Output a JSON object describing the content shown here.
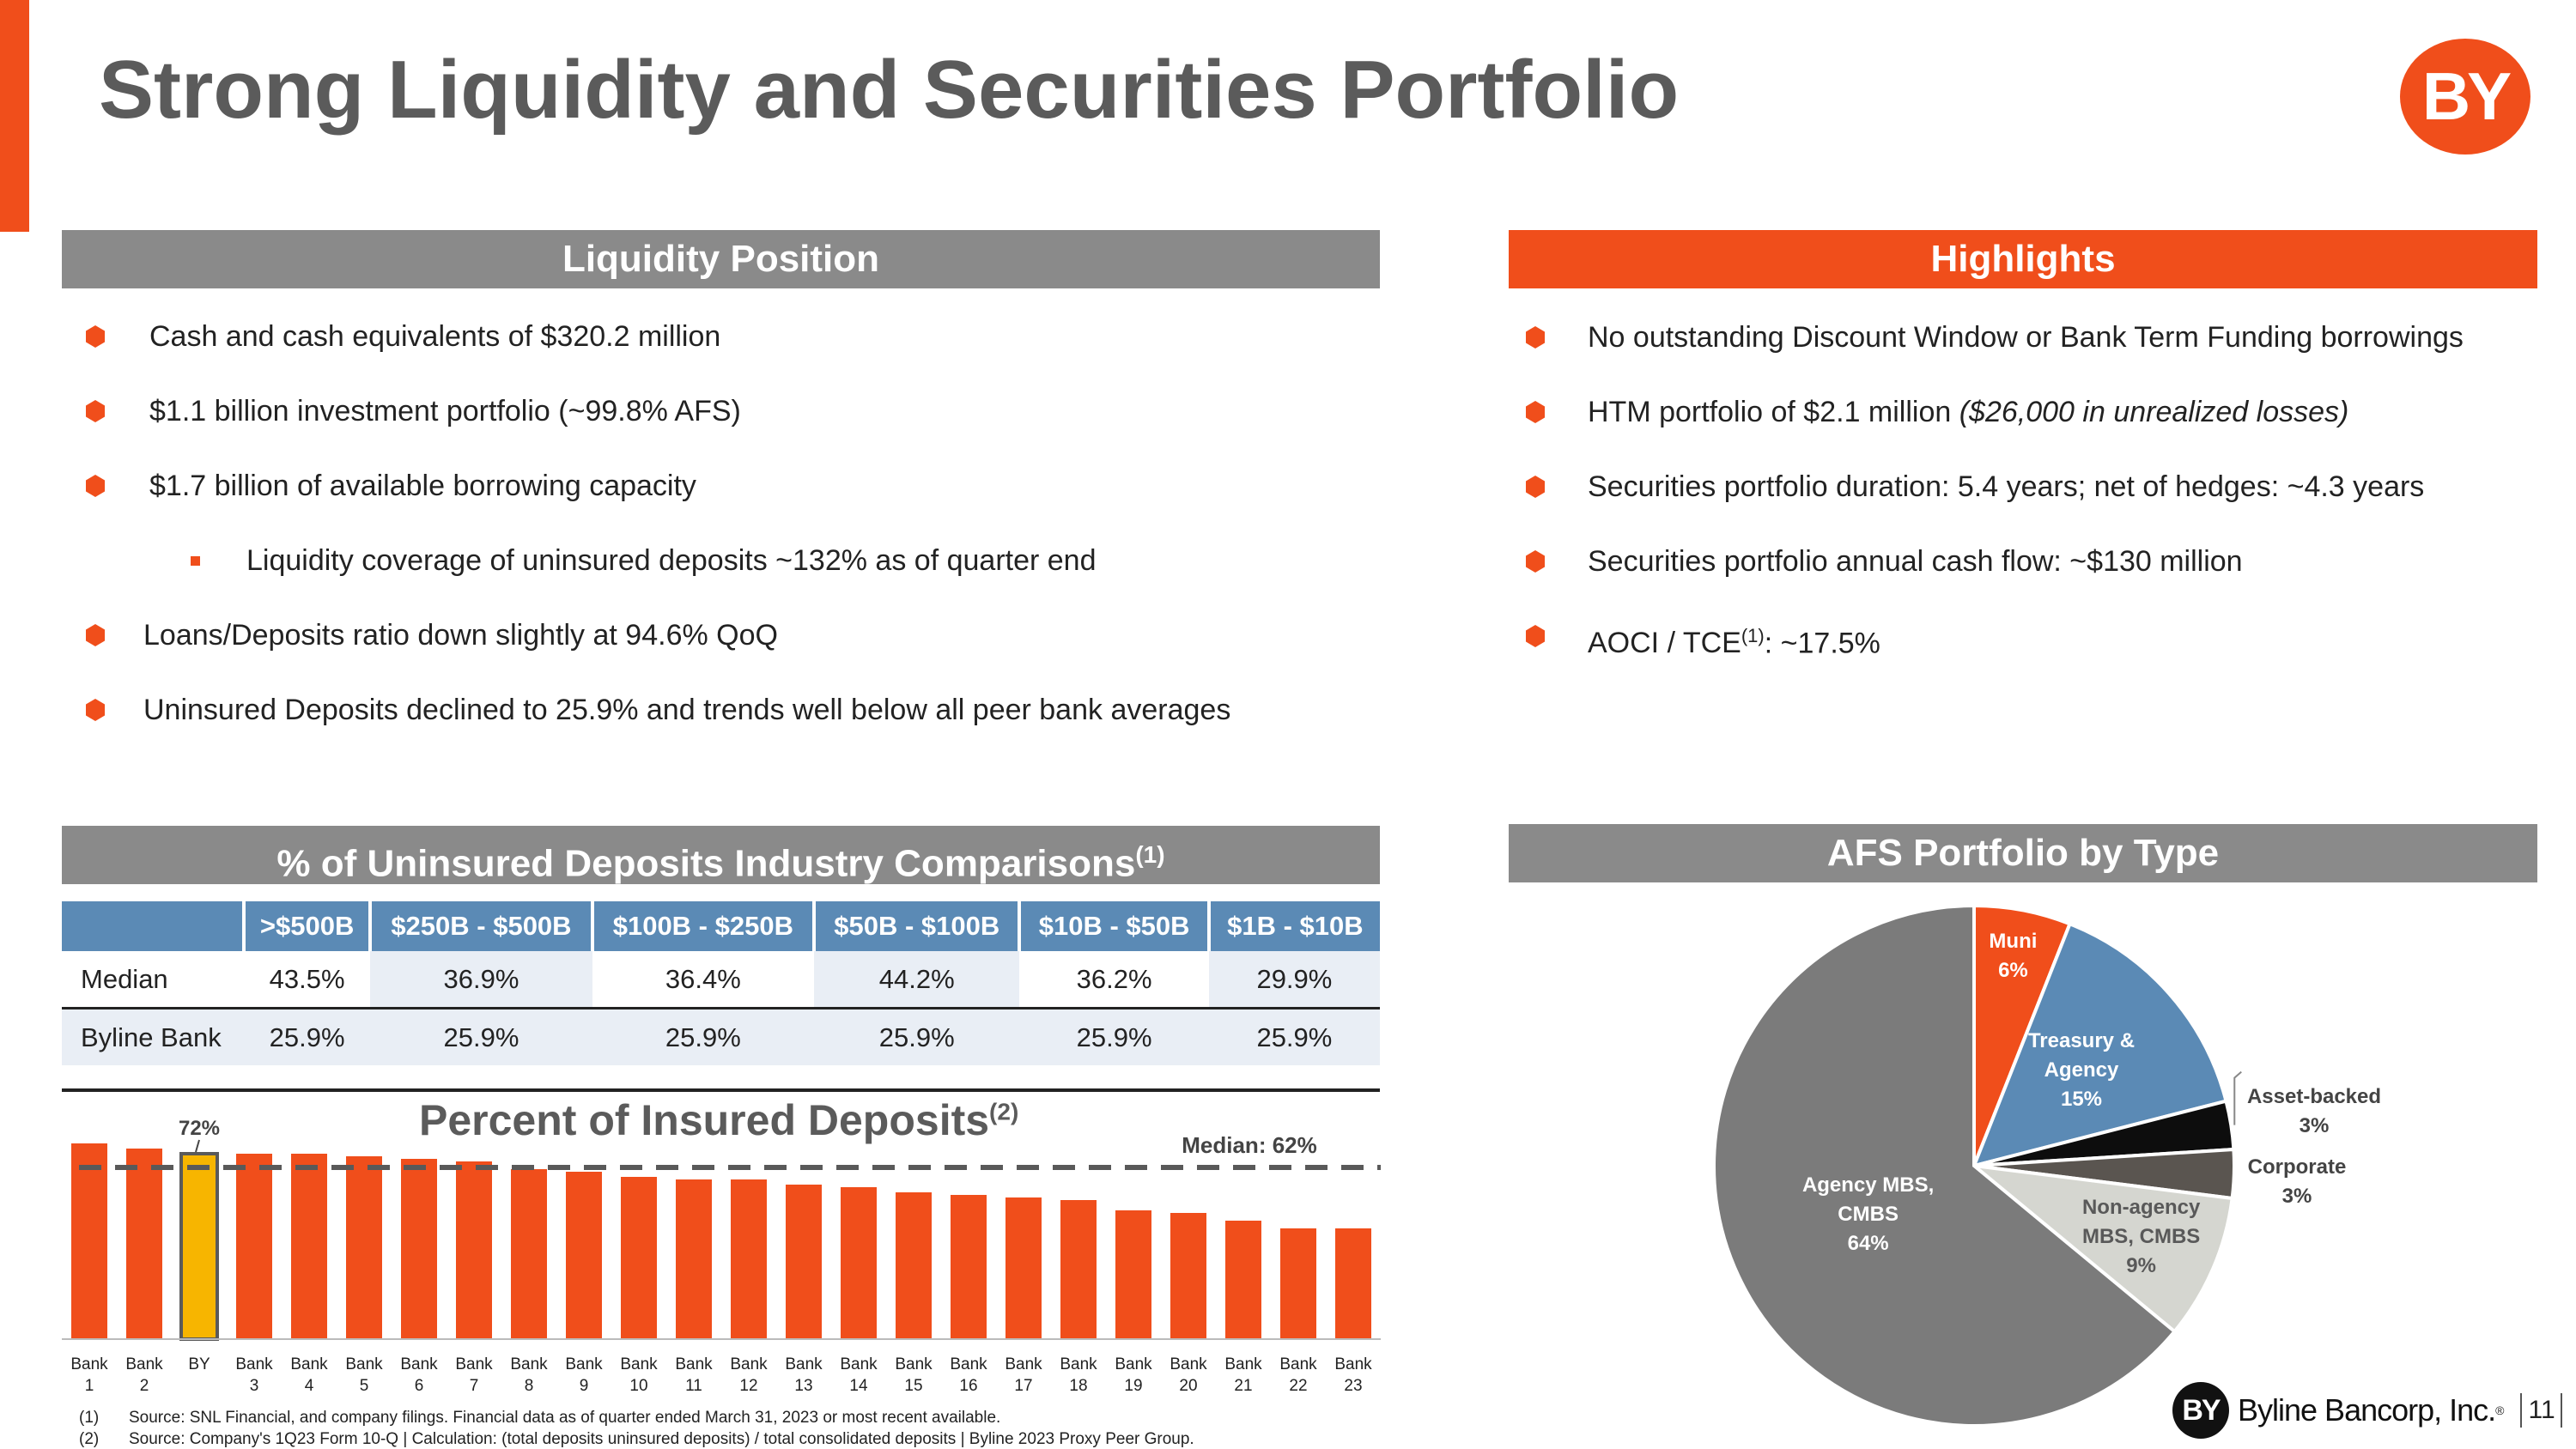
{
  "title": "Strong Liquidity and Securities Portfolio",
  "logo_text": "BY",
  "liquidity": {
    "header": "Liquidity Position",
    "bullets": [
      {
        "text": "Cash and cash equivalents of $320.2 million"
      },
      {
        "text": "$1.1 billion investment portfolio (~99.8% AFS)"
      },
      {
        "text": "$1.7 billion of available borrowing capacity"
      },
      {
        "text": "Liquidity coverage of uninsured deposits ~132% as of quarter end"
      },
      {
        "text": "Loans/Deposits ratio down slightly at 94.6% QoQ"
      },
      {
        "text": "Uninsured Deposits declined to 25.9% and trends well below all peer bank averages"
      }
    ]
  },
  "highlights": {
    "header": "Highlights",
    "bullets": [
      {
        "text": "No outstanding Discount Window or Bank Term Funding borrowings"
      },
      {
        "text": "HTM portfolio of $2.1 million ",
        "italic": "($26,000 in unrealized losses)"
      },
      {
        "text": "Securities portfolio duration: 5.4 years; net of hedges: ~4.3 years"
      },
      {
        "text": "Securities portfolio annual cash flow: ~$130 million"
      },
      {
        "text": "AOCI / TCE",
        "sup": "(1)",
        "after": ": ~17.5%"
      }
    ]
  },
  "uninsured": {
    "header": "% of Uninsured Deposits Industry Comparisons",
    "header_sup": "(1)",
    "columns": [
      ">$500B",
      "$250B - $500B",
      "$100B - $250B",
      "$50B - $100B",
      "$10B - $50B",
      "$1B - $10B"
    ],
    "rows": [
      {
        "label": "Median",
        "values": [
          "43.5%",
          "36.9%",
          "36.4%",
          "44.2%",
          "36.2%",
          "29.9%"
        ]
      },
      {
        "label": "Byline Bank",
        "values": [
          "25.9%",
          "25.9%",
          "25.9%",
          "25.9%",
          "25.9%",
          "25.9%"
        ]
      }
    ]
  },
  "chart_data": [
    {
      "type": "bar",
      "title": "Percent of Insured Deposits",
      "title_sup": "(2)",
      "categories": [
        [
          "Bank",
          "1"
        ],
        [
          "Bank",
          "2"
        ],
        [
          "BY",
          ""
        ],
        [
          "Bank",
          "3"
        ],
        [
          "Bank",
          "4"
        ],
        [
          "Bank",
          "5"
        ],
        [
          "Bank",
          "6"
        ],
        [
          "Bank",
          "7"
        ],
        [
          "Bank",
          "8"
        ],
        [
          "Bank",
          "9"
        ],
        [
          "Bank",
          "10"
        ],
        [
          "Bank",
          "11"
        ],
        [
          "Bank",
          "12"
        ],
        [
          "Bank",
          "13"
        ],
        [
          "Bank",
          "14"
        ],
        [
          "Bank",
          "15"
        ],
        [
          "Bank",
          "16"
        ],
        [
          "Bank",
          "17"
        ],
        [
          "Bank",
          "18"
        ],
        [
          "Bank",
          "19"
        ],
        [
          "Bank",
          "20"
        ],
        [
          "Bank",
          "21"
        ],
        [
          "Bank",
          "22"
        ],
        [
          "Bank",
          "23"
        ]
      ],
      "values": [
        76,
        74,
        72,
        72,
        72,
        71,
        70,
        69,
        66,
        65,
        63,
        62,
        62,
        60,
        59,
        57,
        56,
        55,
        54,
        50,
        49,
        46,
        43,
        43
      ],
      "highlight_index": 2,
      "highlight_label": "72%",
      "median_value": 62,
      "median_label": "Median: 62%",
      "ylim": [
        0,
        80
      ],
      "colors": {
        "bar": "#f04e1b",
        "highlight": "#f7b500",
        "median": "#595959"
      }
    },
    {
      "type": "pie",
      "title": "AFS Portfolio by Type",
      "slices": [
        {
          "name": "Muni",
          "value": 6,
          "label": "6%",
          "color": "#f04e1b"
        },
        {
          "name": "Treasury &",
          "name2": "Agency",
          "value": 15,
          "label": "15%",
          "color": "#5b8ab5"
        },
        {
          "name": "Asset-backed",
          "value": 3,
          "label": "3%",
          "color": "#0d0d0d"
        },
        {
          "name": "Corporate",
          "value": 3,
          "label": "3%",
          "color": "#5a5550"
        },
        {
          "name": "Non-agency",
          "name2": "MBS, CMBS",
          "value": 9,
          "label": "9%",
          "color": "#d5d6d0"
        },
        {
          "name": "Agency MBS,",
          "name2": "CMBS",
          "value": 64,
          "label": "64%",
          "color": "#7b7b7b"
        }
      ]
    }
  ],
  "footnotes": [
    {
      "num": "(1)",
      "text": "Source: SNL Financial, and company filings. Financial data as of quarter ended March 31, 2023 or most recent available."
    },
    {
      "num": "(2)",
      "text": "Source: Company's 1Q23 Form 10-Q | Calculation: (total deposits uninsured deposits) / total consolidated deposits | Byline 2023 Proxy Peer Group."
    }
  ],
  "footer": {
    "company": "Byline Bancorp, Inc.",
    "mark": "BY",
    "tm": "®",
    "page": "11"
  }
}
